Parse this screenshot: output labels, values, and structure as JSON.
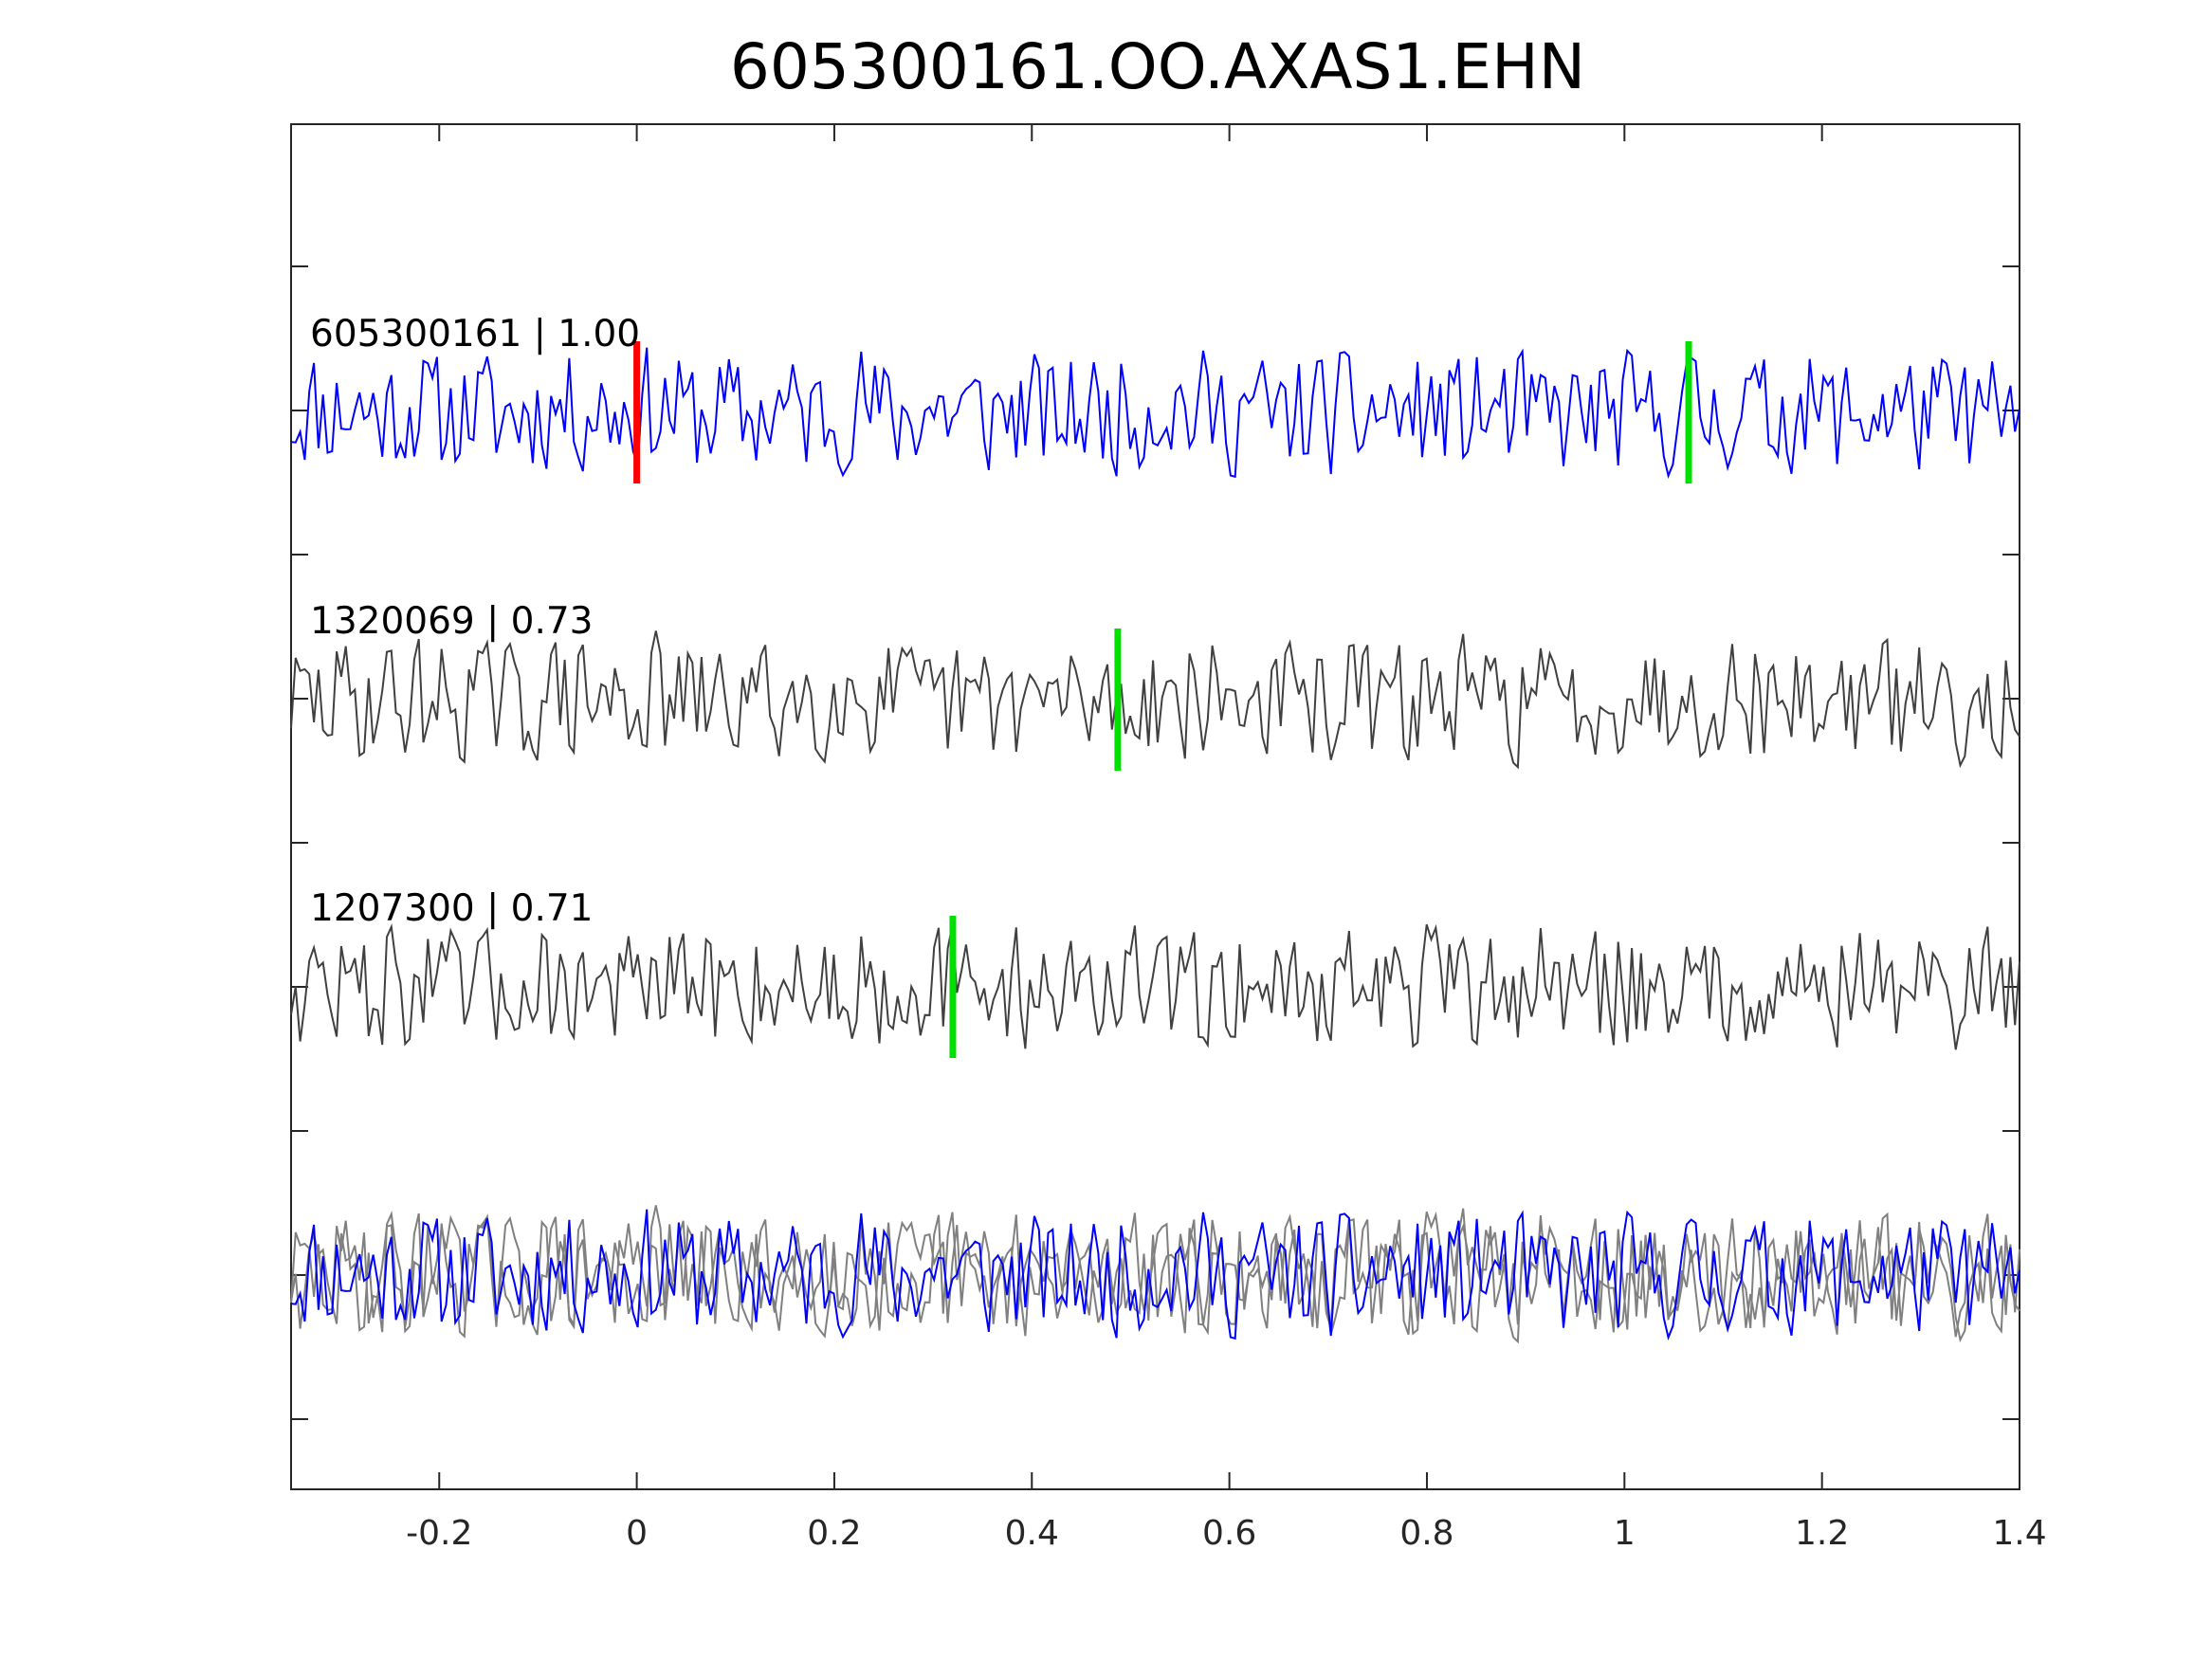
{
  "chart_data": {
    "type": "line",
    "title": "605300161.OO.AXAS1.EHN",
    "xlabel": "",
    "ylabel": "",
    "xlim": [
      -0.35,
      1.4
    ],
    "xticks": [
      -0.2,
      0,
      0.2,
      0.4,
      0.6,
      0.8,
      1,
      1.2,
      1.4
    ],
    "xtick_labels": [
      "-0.2",
      "0",
      "0.2",
      "0.4",
      "0.6",
      "0.8",
      "1",
      "1.2",
      "1.4"
    ],
    "y_ticks_count": 9,
    "y_tick_labels_shown": false,
    "grid": false,
    "legend": "none",
    "colors": {
      "reference_trace": "#0000ff",
      "neighbor_trace_stacked": "#404040",
      "neighbor_trace_overlay": "#808080",
      "reference_pick": "#ff0000",
      "other_pick": "#00e000",
      "axes": "#262626"
    },
    "traces": [
      {
        "label": "605300161 | 1.00",
        "event_id": "605300161",
        "correlation": 1.0,
        "color": "#0000ff",
        "pick_time": 0.0,
        "pick_color": "#ff0000",
        "seed": 11
      },
      {
        "label": "1320069 | 0.73",
        "event_id": "1320069",
        "correlation": 0.73,
        "color": "#404040",
        "pick_time": 0.487,
        "pick_color": "#00e000",
        "seed": 29
      },
      {
        "label": "1207300 | 0.71",
        "event_id": "1207300",
        "correlation": 0.71,
        "color": "#404040",
        "pick_time": 0.32,
        "pick_color": "#00e000",
        "seed": 47
      }
    ],
    "extra_picks": [
      {
        "trace_index": 0,
        "pick_time": 1.065,
        "pick_color": "#00e000"
      }
    ],
    "overlay_row": {
      "description_shown": false,
      "traces_overlaid": [
        "605300161",
        "1320069",
        "1207300"
      ]
    }
  }
}
